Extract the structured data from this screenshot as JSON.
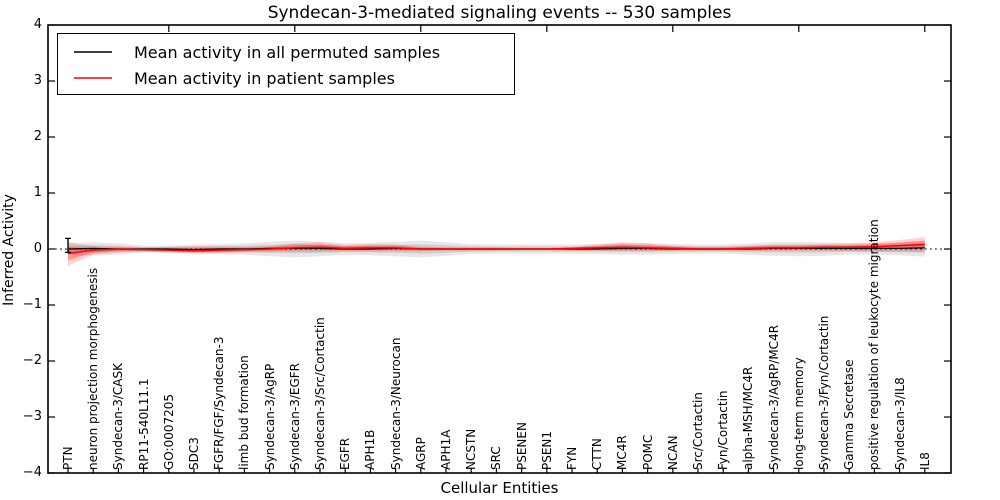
{
  "title": "Syndecan-3-mediated signaling events -- 530 samples",
  "legend": {
    "items": [
      {
        "label": "Mean activity in all permuted samples",
        "color": "#000000"
      },
      {
        "label": "Mean activity in patient samples",
        "color": "#ff0000"
      }
    ]
  },
  "chart_data": {
    "type": "line",
    "title": "Syndecan-3-mediated signaling events -- 530 samples",
    "xlabel": "Cellular Entities",
    "ylabel": "Inferred Activity",
    "ylim": [
      -4,
      4
    ],
    "yticks": [
      4,
      3,
      2,
      1,
      0,
      -1,
      -2,
      -3,
      -4
    ],
    "ytick_labels": [
      "4",
      "3",
      "2",
      "1",
      "0",
      "−1",
      "−2",
      "−3",
      "−4"
    ],
    "grid": false,
    "legend_position": "upper left",
    "zero_reference_line": 0,
    "categories": [
      "PTN",
      "neuron projection morphogenesis",
      "Syndecan-3/CASK",
      "RP11-540L11.1",
      "GO:0007205",
      "SDC3",
      "FGFR/FGF/Syndecan-3",
      "limb bud formation",
      "Syndecan-3/AgRP",
      "Syndecan-3/EGFR",
      "Syndecan-3/Src/Cortactin",
      "EGFR",
      "APH1B",
      "Syndecan-3/Neurocan",
      "AGRP",
      "APH1A",
      "NCSTN",
      "SRC",
      "PSENEN",
      "PSEN1",
      "FYN",
      "CTTN",
      "MC4R",
      "POMC",
      "NCAN",
      "Src/Cortactin",
      "Fyn/Cortactin",
      "alpha-MSH/MC4R",
      "Syndecan-3/AgRP/MC4R",
      "long-term memory",
      "Syndecan-3/Fyn/Cortactin",
      "Gamma Secretase",
      "positive regulation of leukocyte migration",
      "Syndecan-3/IL8",
      "IL8"
    ],
    "series": [
      {
        "name": "Mean activity in all permuted samples",
        "color": "#000000",
        "values": [
          0,
          0.01,
          0,
          0,
          0,
          -0.01,
          0,
          0,
          0.01,
          0.01,
          0.01,
          0,
          0,
          0.01,
          0,
          0,
          0,
          0,
          0,
          0,
          0,
          0,
          0.01,
          0.01,
          0,
          0,
          0,
          0,
          0.01,
          0.01,
          0.01,
          0.01,
          0.01,
          0.01,
          0.02
        ]
      },
      {
        "name": "Mean activity in patient samples",
        "color": "#ff0000",
        "values": [
          -0.08,
          -0.02,
          0,
          -0.01,
          -0.02,
          -0.03,
          -0.02,
          -0.01,
          0,
          0.02,
          0.03,
          0.01,
          0.02,
          0.02,
          0,
          0,
          0,
          0,
          0,
          0,
          0.01,
          0.02,
          0.03,
          0.02,
          0.01,
          0,
          0,
          0.01,
          0.02,
          0.02,
          0.03,
          0.03,
          0.04,
          0.06,
          0.08
        ]
      }
    ],
    "bands": [
      {
        "name": "permuted-samples-band",
        "fill": "rgba(120,120,120,0.18)",
        "fill_inner": "rgba(120,120,120,0.22)",
        "mean_series": 0,
        "upper": [
          0.1,
          0.12,
          0.1,
          0.06,
          0.06,
          0.08,
          0.09,
          0.1,
          0.13,
          0.15,
          0.13,
          0.1,
          0.11,
          0.13,
          0.15,
          0.12,
          0.09,
          0.08,
          0.08,
          0.08,
          0.08,
          0.09,
          0.1,
          0.1,
          0.09,
          0.08,
          0.08,
          0.1,
          0.12,
          0.13,
          0.12,
          0.1,
          0.1,
          0.11,
          0.12
        ],
        "lower": [
          -0.1,
          -0.12,
          -0.1,
          -0.06,
          -0.06,
          -0.08,
          -0.09,
          -0.1,
          -0.13,
          -0.15,
          -0.13,
          -0.1,
          -0.11,
          -0.13,
          -0.15,
          -0.12,
          -0.09,
          -0.08,
          -0.08,
          -0.08,
          -0.08,
          -0.09,
          -0.1,
          -0.1,
          -0.09,
          -0.08,
          -0.08,
          -0.1,
          -0.12,
          -0.13,
          -0.12,
          -0.1,
          -0.1,
          -0.11,
          -0.14
        ]
      },
      {
        "name": "patient-samples-band",
        "fill": "rgba(255,0,0,0.18)",
        "fill_inner": "rgba(255,0,0,0.30)",
        "mean_series": 1,
        "upper": [
          0.12,
          0.05,
          0.04,
          0.03,
          0.04,
          0.05,
          0.05,
          0.04,
          0.05,
          0.1,
          0.12,
          0.07,
          0.09,
          0.08,
          0.04,
          0.03,
          0.03,
          0.03,
          0.02,
          0.02,
          0.03,
          0.08,
          0.12,
          0.1,
          0.06,
          0.04,
          0.04,
          0.06,
          0.08,
          0.08,
          0.09,
          0.1,
          0.12,
          0.16,
          0.21
        ],
        "lower": [
          -0.3,
          -0.1,
          -0.06,
          -0.05,
          -0.06,
          -0.08,
          -0.07,
          -0.06,
          -0.05,
          -0.05,
          -0.05,
          -0.04,
          -0.04,
          -0.04,
          -0.04,
          -0.03,
          -0.03,
          -0.03,
          -0.02,
          -0.02,
          -0.03,
          -0.03,
          -0.04,
          -0.04,
          -0.03,
          -0.03,
          -0.03,
          -0.03,
          -0.03,
          -0.03,
          -0.03,
          -0.04,
          -0.05,
          -0.05,
          -0.05
        ]
      }
    ],
    "errorbar": {
      "index": 0,
      "upper": 0.19,
      "lower": -0.06
    }
  }
}
